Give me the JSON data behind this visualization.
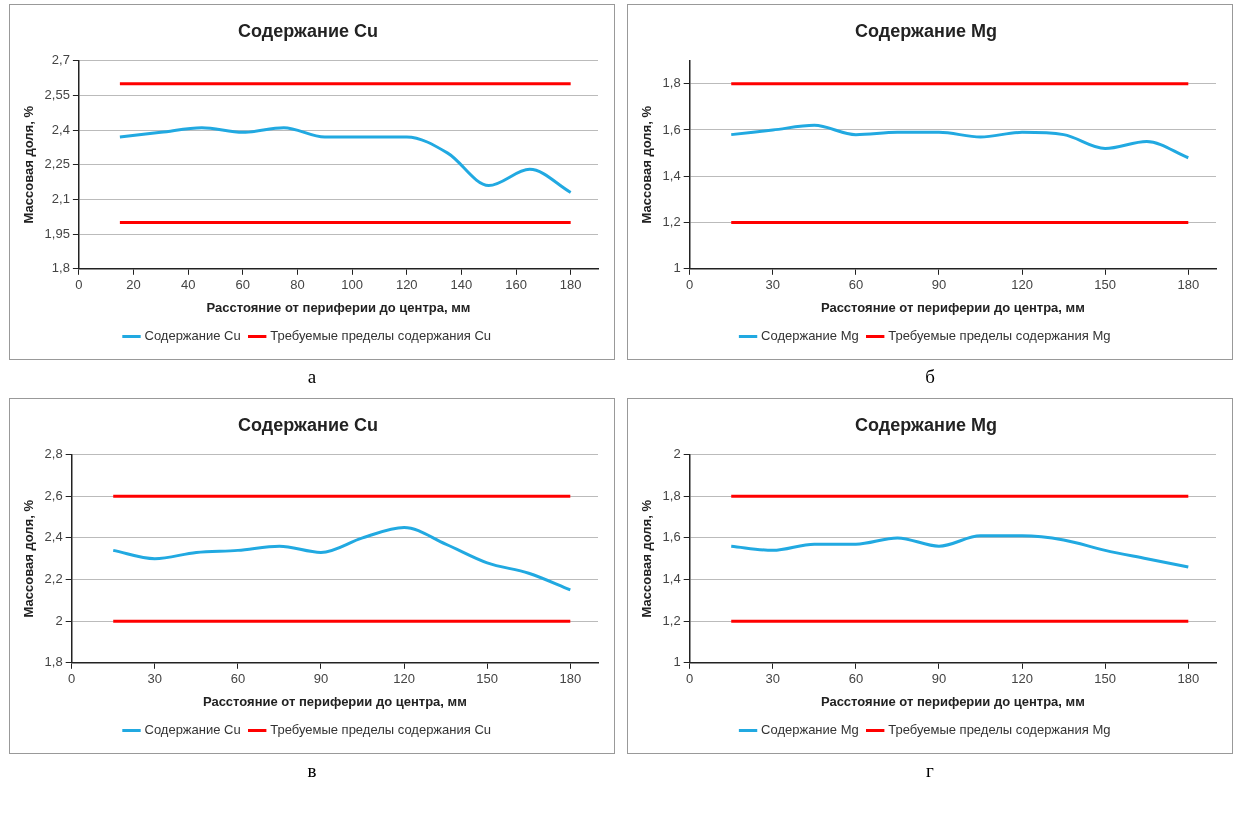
{
  "chart_data": [
    {
      "type": "line",
      "title": "Содержание Cu",
      "xlabel": "Расстояние от периферии до центра, мм",
      "ylabel": "Массовая доля, %",
      "x": [
        15,
        30,
        45,
        60,
        75,
        90,
        105,
        120,
        135,
        150,
        165,
        180
      ],
      "series": [
        {
          "name": "Содержание Cu",
          "color": "#21a9e1",
          "values": [
            2.37,
            2.39,
            2.41,
            2.39,
            2.41,
            2.37,
            2.37,
            2.37,
            2.3,
            2.16,
            2.23,
            2.13
          ]
        },
        {
          "name": "Требуемые пределы содержания Cu",
          "color": "#ff0000",
          "values": [
            2.6,
            2.6,
            2.6,
            2.6,
            2.6,
            2.6,
            2.6,
            2.6,
            2.6,
            2.6,
            2.6,
            2.6
          ]
        },
        {
          "color": "#ff0000",
          "values": [
            2.0,
            2.0,
            2.0,
            2.0,
            2.0,
            2.0,
            2.0,
            2.0,
            2.0,
            2.0,
            2.0,
            2.0
          ]
        }
      ],
      "xlim": [
        0,
        190
      ],
      "xticks": [
        0,
        20,
        40,
        60,
        80,
        100,
        120,
        140,
        160,
        180
      ],
      "ylim": [
        1.8,
        2.7
      ],
      "yticks": [
        {
          "value": 1.8,
          "label": "1,8"
        },
        {
          "value": 1.95,
          "label": "1,95"
        },
        {
          "value": 2.1,
          "label": "2,1"
        },
        {
          "value": 2.25,
          "label": "2,25"
        },
        {
          "value": 2.4,
          "label": "2,4"
        },
        {
          "value": 2.55,
          "label": "2,55"
        },
        {
          "value": 2.7,
          "label": "2,7"
        }
      ],
      "grid": "y",
      "legend": "bottom",
      "marker": "none",
      "annotations": [
        "а"
      ]
    },
    {
      "type": "line",
      "title": "Содержание Mg",
      "xlabel": "Расстояние от периферии до центра, мм",
      "ylabel": "Массовая доля, %",
      "x": [
        15,
        30,
        45,
        60,
        75,
        90,
        105,
        120,
        135,
        150,
        165,
        180
      ],
      "series": [
        {
          "name": "Содержание Mg",
          "color": "#21a9e1",
          "values": [
            1.58,
            1.6,
            1.62,
            1.58,
            1.59,
            1.59,
            1.57,
            1.59,
            1.58,
            1.52,
            1.55,
            1.48
          ]
        },
        {
          "name": "Требуемые пределы содержания Mg",
          "color": "#ff0000",
          "values": [
            1.8,
            1.8,
            1.8,
            1.8,
            1.8,
            1.8,
            1.8,
            1.8,
            1.8,
            1.8,
            1.8,
            1.8
          ]
        },
        {
          "color": "#ff0000",
          "values": [
            1.2,
            1.2,
            1.2,
            1.2,
            1.2,
            1.2,
            1.2,
            1.2,
            1.2,
            1.2,
            1.2,
            1.2
          ]
        }
      ],
      "xlim": [
        0,
        190
      ],
      "xticks": [
        0,
        30,
        60,
        90,
        120,
        150,
        180
      ],
      "ylim": [
        1,
        1.9
      ],
      "yticks": [
        {
          "value": 1,
          "label": "1"
        },
        {
          "value": 1.2,
          "label": "1,2"
        },
        {
          "value": 1.4,
          "label": "1,4"
        },
        {
          "value": 1.6,
          "label": "1,6"
        },
        {
          "value": 1.8,
          "label": "1,8"
        }
      ],
      "grid": "y",
      "legend": "bottom",
      "marker": "none",
      "annotations": [
        "б"
      ]
    },
    {
      "type": "line",
      "title": "Содержание Cu",
      "xlabel": "Расстояние от периферии до центра, мм",
      "ylabel": "Массовая доля, %",
      "x": [
        15,
        30,
        45,
        60,
        75,
        90,
        105,
        120,
        135,
        150,
        165,
        180
      ],
      "series": [
        {
          "name": "Содержание Cu",
          "color": "#21a9e1",
          "values": [
            2.34,
            2.3,
            2.33,
            2.34,
            2.36,
            2.33,
            2.4,
            2.45,
            2.37,
            2.28,
            2.23,
            2.15
          ]
        },
        {
          "name": "Требуемые пределы содержания Cu",
          "color": "#ff0000",
          "values": [
            2.6,
            2.6,
            2.6,
            2.6,
            2.6,
            2.6,
            2.6,
            2.6,
            2.6,
            2.6,
            2.6,
            2.6
          ]
        },
        {
          "color": "#ff0000",
          "values": [
            2.0,
            2.0,
            2.0,
            2.0,
            2.0,
            2.0,
            2.0,
            2.0,
            2.0,
            2.0,
            2.0,
            2.0
          ]
        }
      ],
      "xlim": [
        0,
        190
      ],
      "xticks": [
        0,
        30,
        60,
        90,
        120,
        150,
        180
      ],
      "ylim": [
        1.8,
        2.8
      ],
      "yticks": [
        {
          "value": 1.8,
          "label": "1,8"
        },
        {
          "value": 2,
          "label": "2"
        },
        {
          "value": 2.2,
          "label": "2,2"
        },
        {
          "value": 2.4,
          "label": "2,4"
        },
        {
          "value": 2.6,
          "label": "2,6"
        },
        {
          "value": 2.8,
          "label": "2,8"
        }
      ],
      "grid": "y",
      "legend": "bottom",
      "marker": "none",
      "annotations": [
        "в"
      ]
    },
    {
      "type": "line",
      "title": "Содержание Mg",
      "xlabel": "Расстояние от периферии до центра, мм",
      "ylabel": "Массовая доля, %",
      "x": [
        15,
        30,
        45,
        60,
        75,
        90,
        105,
        120,
        135,
        150,
        165,
        180
      ],
      "series": [
        {
          "name": "Содержание Mg",
          "color": "#21a9e1",
          "values": [
            1.56,
            1.54,
            1.57,
            1.57,
            1.6,
            1.56,
            1.61,
            1.61,
            1.59,
            1.54,
            1.5,
            1.46
          ]
        },
        {
          "name": "Требуемые пределы содержания Mg",
          "color": "#ff0000",
          "values": [
            1.8,
            1.8,
            1.8,
            1.8,
            1.8,
            1.8,
            1.8,
            1.8,
            1.8,
            1.8,
            1.8,
            1.8
          ]
        },
        {
          "color": "#ff0000",
          "values": [
            1.2,
            1.2,
            1.2,
            1.2,
            1.2,
            1.2,
            1.2,
            1.2,
            1.2,
            1.2,
            1.2,
            1.2
          ]
        }
      ],
      "xlim": [
        0,
        190
      ],
      "xticks": [
        0,
        30,
        60,
        90,
        120,
        150,
        180
      ],
      "ylim": [
        1,
        2
      ],
      "yticks": [
        {
          "value": 1,
          "label": "1"
        },
        {
          "value": 1.2,
          "label": "1,2"
        },
        {
          "value": 1.4,
          "label": "1,4"
        },
        {
          "value": 1.6,
          "label": "1,6"
        },
        {
          "value": 1.8,
          "label": "1,8"
        },
        {
          "value": 2,
          "label": "2"
        }
      ],
      "grid": "y",
      "legend": "bottom",
      "marker": "none",
      "annotations": [
        "г"
      ]
    }
  ]
}
